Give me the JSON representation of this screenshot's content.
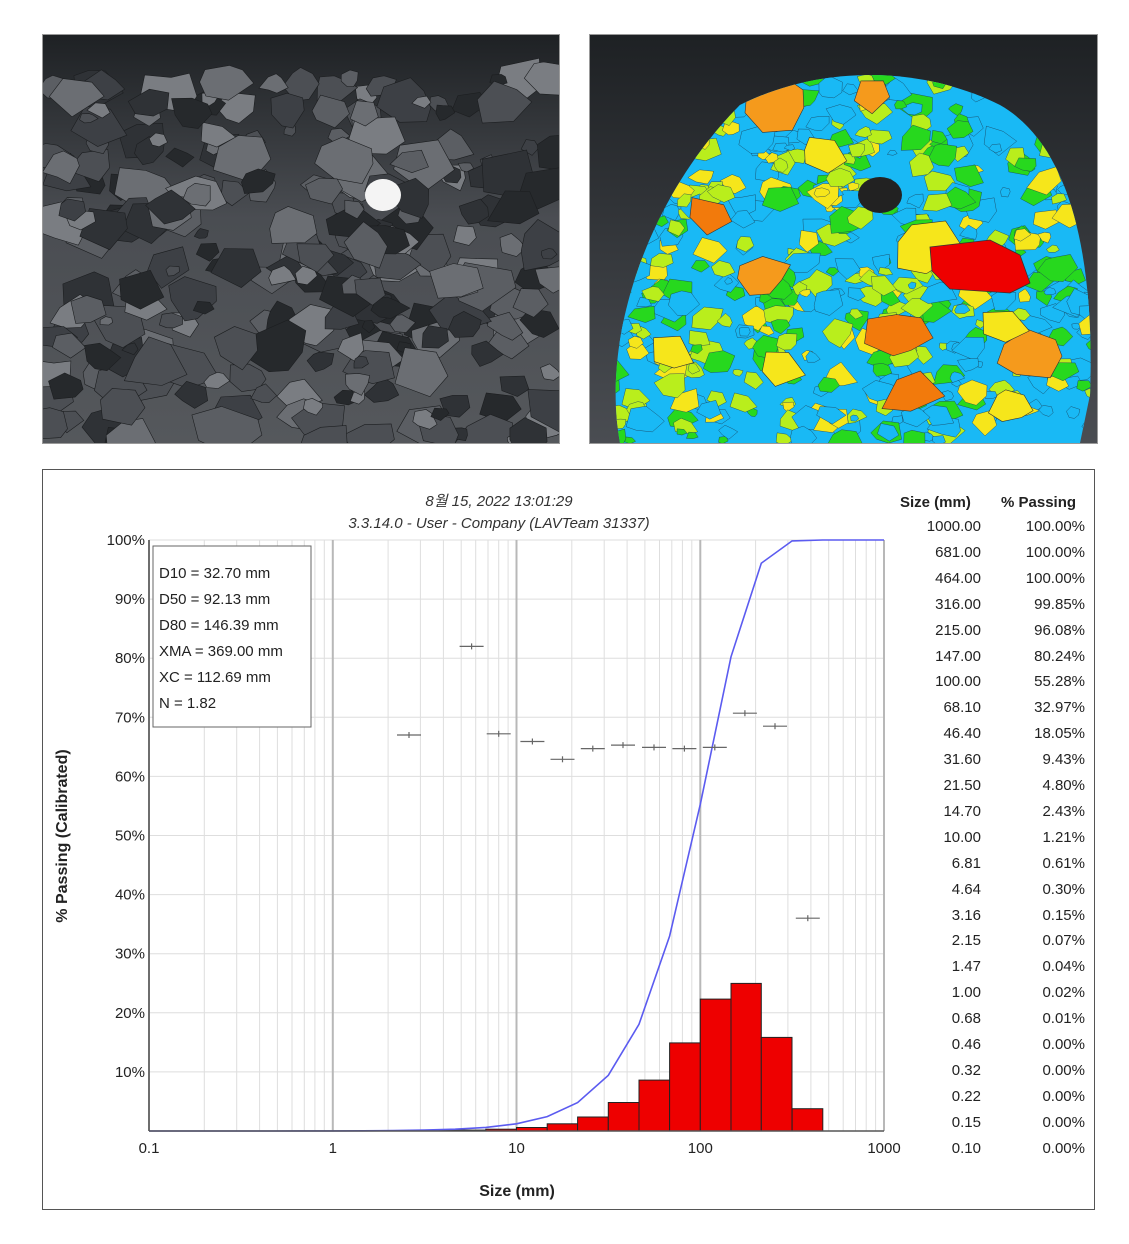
{
  "photos": {
    "left": {
      "name": "raw-muckpile-photo"
    },
    "right": {
      "name": "segmented-fragment-overlay"
    }
  },
  "colors": {
    "histogram": "#ee0000",
    "cumulative_curve": "#5b5bf0",
    "grid_major": "#bdbdbd",
    "grid_minor": "#dedede",
    "frag_blue": "#19b9f5",
    "frag_green": "#27d81e",
    "frag_lime": "#b9ee1c",
    "frag_yellow": "#f6e61b",
    "frag_orange": "#f59a1c",
    "frag_dark_orange": "#f27a0c",
    "frag_red": "#ee0000",
    "frag_black": "#222222"
  },
  "chart": {
    "header_line1": "8월 15, 2022 13:01:29",
    "header_line2": "3.3.14.0  -  User - Company (LAVTeam 31337)",
    "stats": [
      "D10 = 32.70 mm",
      "D50 = 92.13 mm",
      "D80 = 146.39 mm",
      "XMA = 369.00 mm",
      "XC = 112.69 mm",
      "N = 1.82"
    ],
    "x_ticks": [
      "0.1",
      "1",
      "10",
      "100",
      "1000"
    ],
    "y_ticks": [
      "10%",
      "20%",
      "30%",
      "40%",
      "50%",
      "60%",
      "70%",
      "80%",
      "90%",
      "100%"
    ]
  },
  "chart_data": {
    "type": "bar",
    "xlabel": "Size (mm)",
    "ylabel": "% Passing (Calibrated)",
    "x_scale": "log",
    "xlim": [
      0.1,
      1000
    ],
    "ylim": [
      0,
      100
    ],
    "grid": true,
    "histogram": {
      "bins": [
        [
          1.47,
          2.15
        ],
        [
          2.15,
          3.16
        ],
        [
          3.16,
          4.64
        ],
        [
          4.64,
          6.81
        ],
        [
          6.81,
          10.0
        ],
        [
          10.0,
          14.7
        ],
        [
          14.7,
          21.5
        ],
        [
          21.5,
          31.6
        ],
        [
          31.6,
          46.4
        ],
        [
          46.4,
          68.1
        ],
        [
          68.1,
          100
        ],
        [
          100,
          147
        ],
        [
          147,
          215
        ],
        [
          215,
          316
        ],
        [
          316,
          464
        ]
      ],
      "values": [
        0.02,
        0.03,
        0.08,
        0.15,
        0.31,
        0.6,
        1.22,
        2.37,
        4.83,
        8.62,
        14.91,
        22.31,
        24.98,
        15.84,
        3.77
      ]
    },
    "cumulative": {
      "x": [
        0.1,
        0.15,
        0.22,
        0.32,
        0.46,
        0.68,
        1.0,
        1.47,
        2.15,
        3.16,
        4.64,
        6.81,
        10.0,
        14.7,
        21.5,
        31.6,
        46.4,
        68.1,
        100,
        147,
        215,
        316,
        464,
        681,
        1000
      ],
      "y": [
        0.0,
        0.0,
        0.0,
        0.0,
        0.0,
        0.01,
        0.02,
        0.04,
        0.07,
        0.15,
        0.3,
        0.61,
        1.21,
        2.43,
        4.8,
        9.43,
        18.05,
        32.97,
        55.28,
        80.24,
        96.08,
        99.85,
        100.0,
        100.0,
        100.0
      ]
    },
    "markers": [
      {
        "x": 2.6,
        "y": 67
      },
      {
        "x": 5.7,
        "y": 82
      },
      {
        "x": 8.0,
        "y": 67.2
      },
      {
        "x": 12.2,
        "y": 65.9
      },
      {
        "x": 17.8,
        "y": 62.9
      },
      {
        "x": 26.0,
        "y": 64.7
      },
      {
        "x": 38.0,
        "y": 65.3
      },
      {
        "x": 56.0,
        "y": 64.9
      },
      {
        "x": 82.0,
        "y": 64.7
      },
      {
        "x": 120.0,
        "y": 64.9
      },
      {
        "x": 175.0,
        "y": 70.7
      },
      {
        "x": 255.0,
        "y": 68.5
      },
      {
        "x": 385.0,
        "y": 36.0
      }
    ],
    "table": {
      "headers": [
        "Size (mm)",
        "% Passing"
      ],
      "rows": [
        [
          "1000.00",
          "100.00%"
        ],
        [
          "681.00",
          "100.00%"
        ],
        [
          "464.00",
          "100.00%"
        ],
        [
          "316.00",
          "99.85%"
        ],
        [
          "215.00",
          "96.08%"
        ],
        [
          "147.00",
          "80.24%"
        ],
        [
          "100.00",
          "55.28%"
        ],
        [
          "68.10",
          "32.97%"
        ],
        [
          "46.40",
          "18.05%"
        ],
        [
          "31.60",
          "9.43%"
        ],
        [
          "21.50",
          "4.80%"
        ],
        [
          "14.70",
          "2.43%"
        ],
        [
          "10.00",
          "1.21%"
        ],
        [
          "6.81",
          "0.61%"
        ],
        [
          "4.64",
          "0.30%"
        ],
        [
          "3.16",
          "0.15%"
        ],
        [
          "2.15",
          "0.07%"
        ],
        [
          "1.47",
          "0.04%"
        ],
        [
          "1.00",
          "0.02%"
        ],
        [
          "0.68",
          "0.01%"
        ],
        [
          "0.46",
          "0.00%"
        ],
        [
          "0.32",
          "0.00%"
        ],
        [
          "0.22",
          "0.00%"
        ],
        [
          "0.15",
          "0.00%"
        ],
        [
          "0.10",
          "0.00%"
        ]
      ]
    }
  }
}
